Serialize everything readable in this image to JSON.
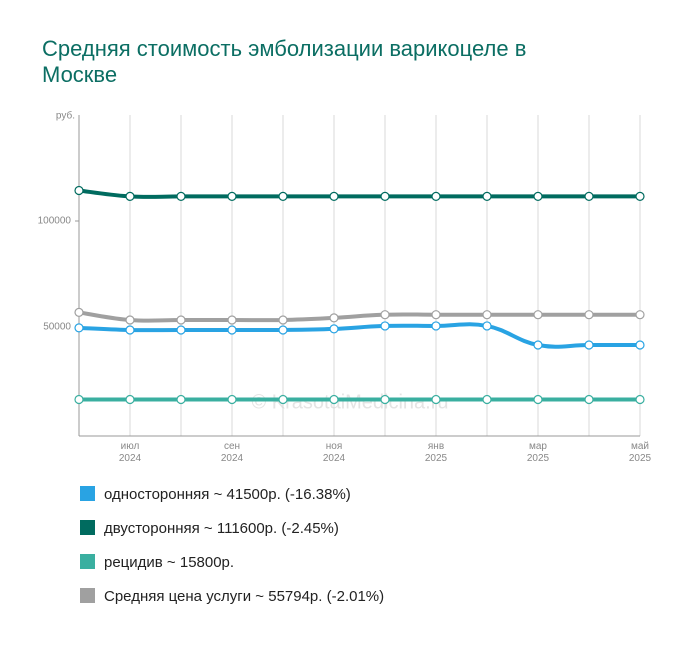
{
  "chart_data": {
    "type": "line",
    "title": "Средняя стоимость эмболизации варикоцеле в Москве",
    "y_label": "руб.",
    "watermark": "© KrasotaiMedicina.ru",
    "categories": [
      null,
      "июл\n2024",
      null,
      "сен\n2024",
      null,
      "ноя\n2024",
      null,
      "янв\n2025",
      null,
      "мар\n2025",
      null,
      "май\n2025"
    ],
    "series": [
      {
        "name": "односторонняя ~ 41500р. (-16.38%)",
        "color": "#29a3e3",
        "values": [
          49600,
          48600,
          48600,
          48600,
          48600,
          49100,
          50500,
          50500,
          50500,
          41500,
          41500,
          41500
        ]
      },
      {
        "name": "двусторонняя ~ 111600р. (-2.45%)",
        "color": "#006b5f",
        "values": [
          114400,
          111600,
          111600,
          111600,
          111600,
          111600,
          111600,
          111600,
          111600,
          111600,
          111600,
          111600
        ]
      },
      {
        "name": "рецидив ~ 15800р.",
        "color": "#3aafa0",
        "values": [
          15800,
          15800,
          15800,
          15800,
          15800,
          15800,
          15800,
          15800,
          15800,
          15800,
          15800,
          15800
        ]
      },
      {
        "name": "Средняя цена услуги ~ 55794р. (-2.01%)",
        "color": "#a0a0a0",
        "values": [
          56900,
          53300,
          53300,
          53300,
          53300,
          54300,
          55800,
          55800,
          55800,
          55800,
          55800,
          55800
        ]
      }
    ],
    "ylim": [
      0,
      150000
    ],
    "yticks": [
      50000,
      100000
    ],
    "grid": true
  }
}
